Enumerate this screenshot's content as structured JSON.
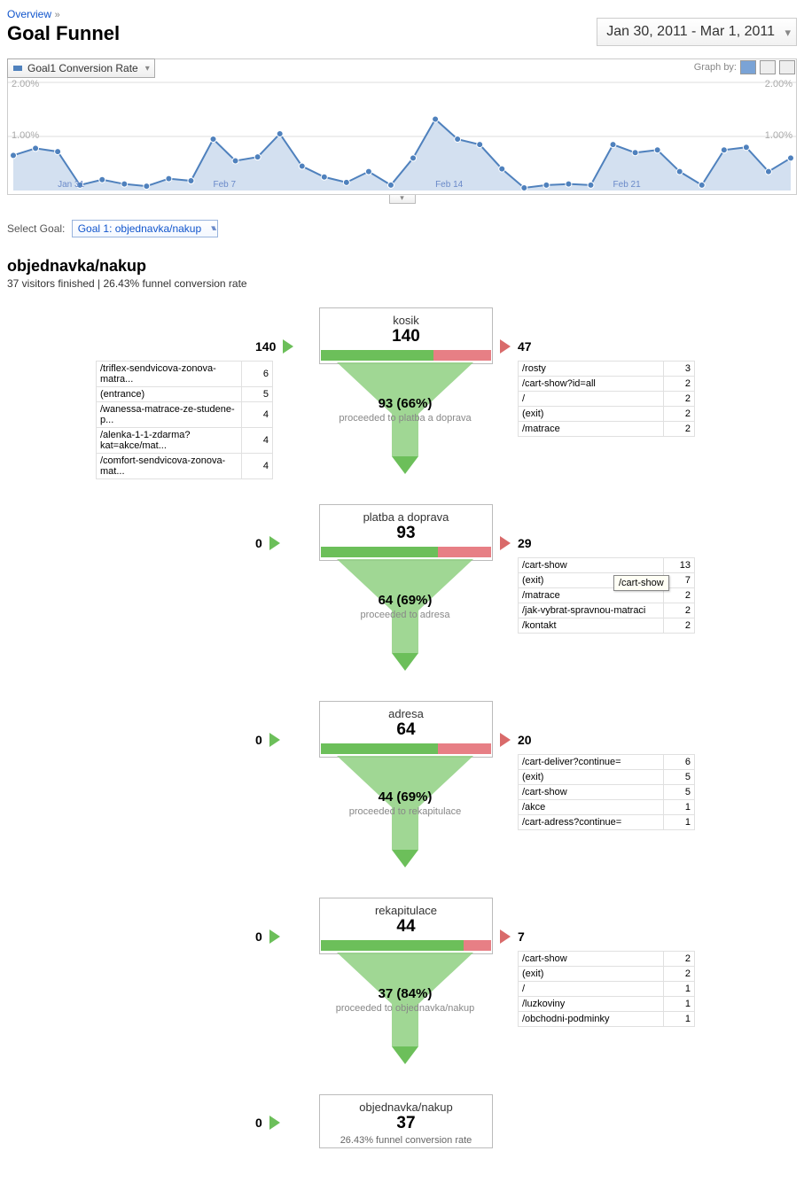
{
  "breadcrumb": {
    "root": "Overview"
  },
  "page_title": "Goal Funnel",
  "date_range": "Jan 30, 2011 - Mar 1, 2011",
  "metric_selector": "Goal1 Conversion Rate",
  "graph_by_label": "Graph by:",
  "chart": {
    "type": "line-area",
    "ylim": [
      0,
      2.0
    ],
    "yticks": [
      "1.00%",
      "2.00%"
    ],
    "x_labels": [
      "Jan 31",
      "Feb 7",
      "Feb 14",
      "Feb 21"
    ],
    "series_color": "#4f81bd",
    "area_color": "#d3e0f0",
    "data": [
      0.65,
      0.78,
      0.72,
      0.1,
      0.2,
      0.12,
      0.08,
      0.22,
      0.18,
      0.95,
      0.55,
      0.62,
      1.05,
      0.45,
      0.25,
      0.15,
      0.35,
      0.1,
      0.6,
      1.32,
      0.95,
      0.85,
      0.4,
      0.05,
      0.1,
      0.12,
      0.1,
      0.85,
      0.7,
      0.75,
      0.35,
      0.1,
      0.75,
      0.8,
      0.35,
      0.6
    ]
  },
  "select_goal_label": "Select Goal:",
  "select_goal_value": "Goal 1: objednavka/nakup",
  "funnel_name": "objednavka/nakup",
  "funnel_summary": "37 visitors finished | 26.43% funnel conversion rate",
  "tooltip_text": "/cart-show",
  "steps": [
    {
      "title": "kosik",
      "count": "140",
      "in": "140",
      "out": "47",
      "green_pct": 66,
      "proceed_n": "93 (66%)",
      "proceed_t": "proceeded to platba a doprava",
      "left_rows": [
        [
          "/triflex-sendvicova-zonova-matra...",
          "6"
        ],
        [
          "(entrance)",
          "5"
        ],
        [
          "/wanessa-matrace-ze-studene-p...",
          "4"
        ],
        [
          "/alenka-1-1-zdarma?kat=akce/mat...",
          "4"
        ],
        [
          "/comfort-sendvicova-zonova-mat...",
          "4"
        ]
      ],
      "right_rows": [
        [
          "/rosty",
          "3"
        ],
        [
          "/cart-show?id=all",
          "2"
        ],
        [
          "/",
          "2"
        ],
        [
          "(exit)",
          "2"
        ],
        [
          "/matrace",
          "2"
        ]
      ]
    },
    {
      "title": "platba a doprava",
      "count": "93",
      "in": "0",
      "out": "29",
      "green_pct": 69,
      "proceed_n": "64 (69%)",
      "proceed_t": "proceeded to adresa",
      "right_rows": [
        [
          "/cart-show",
          "13"
        ],
        [
          "(exit)",
          "7"
        ],
        [
          "/matrace",
          "2"
        ],
        [
          "/jak-vybrat-spravnou-matraci",
          "2"
        ],
        [
          "/kontakt",
          "2"
        ]
      ]
    },
    {
      "title": "adresa",
      "count": "64",
      "in": "0",
      "out": "20",
      "green_pct": 69,
      "proceed_n": "44 (69%)",
      "proceed_t": "proceeded to rekapitulace",
      "right_rows": [
        [
          "/cart-deliver?continue=",
          "6"
        ],
        [
          "(exit)",
          "5"
        ],
        [
          "/cart-show",
          "5"
        ],
        [
          "/akce",
          "1"
        ],
        [
          "/cart-adress?continue=",
          "1"
        ]
      ]
    },
    {
      "title": "rekapitulace",
      "count": "44",
      "in": "0",
      "out": "7",
      "green_pct": 84,
      "proceed_n": "37 (84%)",
      "proceed_t": "proceeded to objednavka/nakup",
      "right_rows": [
        [
          "/cart-show",
          "2"
        ],
        [
          "(exit)",
          "2"
        ],
        [
          "/",
          "1"
        ],
        [
          "/luzkoviny",
          "1"
        ],
        [
          "/obchodni-podminky",
          "1"
        ]
      ]
    }
  ],
  "final": {
    "title": "objednavka/nakup",
    "count": "37",
    "in": "0",
    "sub": "26.43% funnel conversion rate"
  },
  "colors": {
    "green": "#6cbf5a",
    "red": "#e77f85",
    "funnel_body": "#8fd081",
    "chart_line": "#4f81bd"
  }
}
